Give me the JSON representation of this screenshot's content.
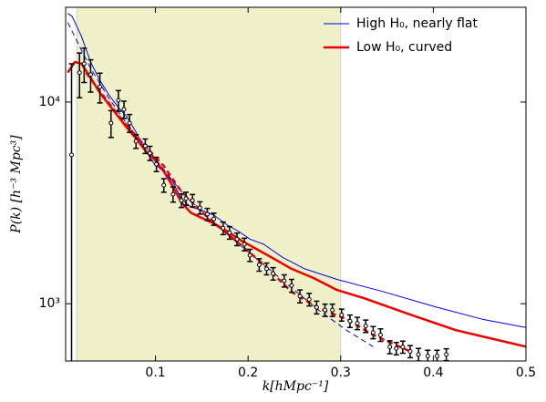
{
  "chart_data": {
    "type": "line",
    "xlabel": "k[hMpc⁻¹]",
    "ylabel": "P(k) [h⁻³ Mpc³]",
    "xlim": [
      0.003,
      0.5
    ],
    "ylim": [
      520,
      29500
    ],
    "log_y": true,
    "xticks": [
      0.1,
      0.2,
      0.3,
      0.4,
      0.5
    ],
    "yticks": [
      {
        "value": 1000,
        "label": "10³"
      },
      {
        "value": 10000,
        "label": "10⁴"
      }
    ],
    "shaded_range": [
      0.015,
      0.3
    ],
    "shade_color": "#f1f1c9",
    "legend": "upper right",
    "series": [
      {
        "name": "High H₀, nearly flat",
        "color": "#0000ee",
        "width": 1,
        "dashed": false,
        "x": [
          0.0054,
          0.01,
          0.02,
          0.03,
          0.04,
          0.05,
          0.06,
          0.069,
          0.079,
          0.089,
          0.099,
          0.109,
          0.119,
          0.128,
          0.138,
          0.148,
          0.163,
          0.178,
          0.19,
          0.202,
          0.217,
          0.237,
          0.261,
          0.296,
          0.345,
          0.404,
          0.453,
          0.5
        ],
        "values": [
          27500,
          26600,
          21200,
          15800,
          12800,
          10800,
          9400,
          8460,
          7100,
          5760,
          4920,
          4530,
          4000,
          3310,
          3020,
          2930,
          2750,
          2450,
          2280,
          2090,
          1970,
          1700,
          1490,
          1320,
          1150,
          960,
          838,
          762
        ]
      },
      {
        "name": "Low H₀, curved",
        "color": "#ee0000",
        "width": 2.5,
        "dashed": false,
        "x": [
          0.0054,
          0.013,
          0.02,
          0.03,
          0.04,
          0.05,
          0.06,
          0.069,
          0.079,
          0.089,
          0.099,
          0.109,
          0.119,
          0.128,
          0.138,
          0.148,
          0.163,
          0.178,
          0.193,
          0.207,
          0.227,
          0.247,
          0.271,
          0.296,
          0.325,
          0.375,
          0.424,
          0.5
        ],
        "values": [
          14000,
          15800,
          15500,
          13200,
          11100,
          9690,
          8460,
          7470,
          6590,
          5750,
          5190,
          4530,
          3800,
          3180,
          2830,
          2690,
          2500,
          2280,
          2050,
          1890,
          1680,
          1490,
          1340,
          1170,
          1065,
          883,
          740,
          612
        ]
      },
      {
        "color": "#0000ee",
        "width": 1,
        "dashed": true,
        "x": [
          0.0054,
          0.02,
          0.03,
          0.05,
          0.069,
          0.089,
          0.109,
          0.128,
          0.158,
          0.188,
          0.217,
          0.247,
          0.276,
          0.306,
          0.335
        ],
        "values": [
          24800,
          18100,
          14700,
          10400,
          7790,
          6060,
          4620,
          3600,
          2630,
          2010,
          1560,
          1200,
          930,
          740,
          612
        ]
      },
      {
        "color": "#ee0000",
        "width": 2.5,
        "dashed": true,
        "x": [
          0.025,
          0.04,
          0.055,
          0.069,
          0.089,
          0.109,
          0.128,
          0.158,
          0.188,
          0.217,
          0.247,
          0.276,
          0.306,
          0.335,
          0.375
        ],
        "values": [
          14000,
          11300,
          9200,
          7630,
          6060,
          4820,
          3600,
          2630,
          2030,
          1560,
          1145,
          950,
          840,
          700,
          580
        ]
      }
    ],
    "points": {
      "color": "#000000",
      "x": [
        0.0094,
        0.018,
        0.023,
        0.03,
        0.04,
        0.052,
        0.06,
        0.066,
        0.072,
        0.079,
        0.089,
        0.094,
        0.101,
        0.109,
        0.119,
        0.128,
        0.133,
        0.14,
        0.148,
        0.156,
        0.163,
        0.173,
        0.18,
        0.188,
        0.196,
        0.202,
        0.212,
        0.22,
        0.227,
        0.239,
        0.247,
        0.256,
        0.266,
        0.274,
        0.283,
        0.291,
        0.301,
        0.31,
        0.318,
        0.327,
        0.335,
        0.343,
        0.353,
        0.36,
        0.367,
        0.375,
        0.384,
        0.394,
        0.404,
        0.414
      ],
      "values": [
        5470,
        14000,
        15500,
        13700,
        11900,
        7870,
        10200,
        9200,
        7870,
        6390,
        6060,
        5580,
        4920,
        3870,
        3490,
        3250,
        3320,
        3250,
        2990,
        2780,
        2630,
        2370,
        2250,
        2090,
        1970,
        1740,
        1560,
        1490,
        1410,
        1300,
        1230,
        1090,
        1050,
        960,
        930,
        930,
        880,
        820,
        800,
        775,
        720,
        700,
        610,
        600,
        610,
        580,
        560,
        550,
        550,
        560
      ],
      "errors": [
        10000,
        3500,
        3000,
        2500,
        2000,
        1200,
        1200,
        900,
        800,
        500,
        500,
        450,
        400,
        300,
        300,
        250,
        250,
        230,
        210,
        190,
        180,
        170,
        160,
        150,
        140,
        120,
        110,
        100,
        100,
        90,
        90,
        80,
        75,
        70,
        65,
        65,
        60,
        58,
        56,
        55,
        50,
        50,
        45,
        42,
        42,
        40,
        40,
        38,
        38,
        38
      ]
    }
  }
}
